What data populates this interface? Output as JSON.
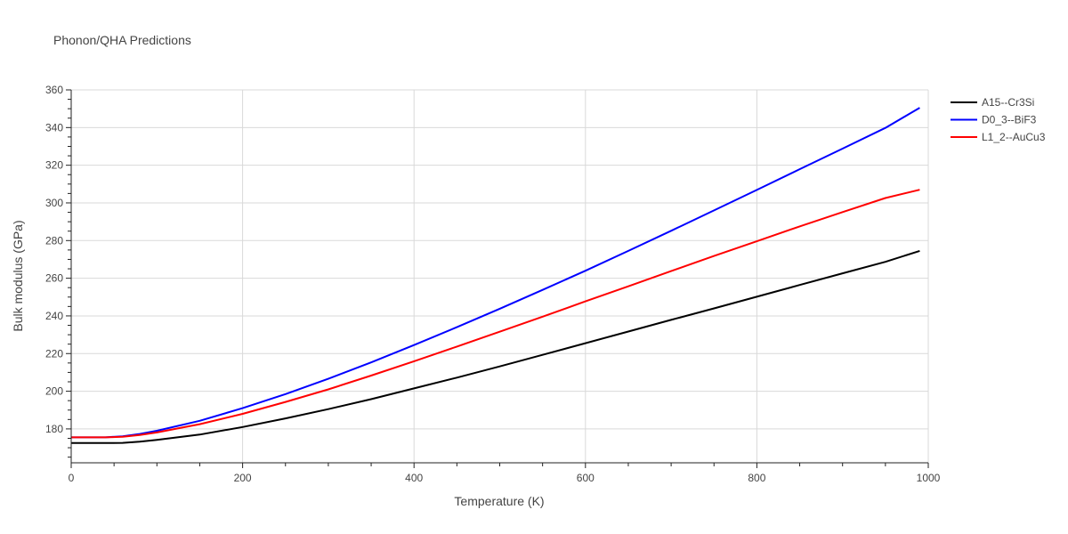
{
  "chart_data": {
    "type": "line",
    "title": "Phonon/QHA Predictions",
    "xlabel": "Temperature (K)",
    "ylabel": "Bulk modulus (GPa)",
    "xlim": [
      0,
      1000
    ],
    "ylim": [
      162,
      360
    ],
    "x_ticks": [
      0,
      200,
      400,
      600,
      800,
      1000
    ],
    "y_ticks": [
      180,
      200,
      220,
      240,
      260,
      280,
      300,
      320,
      340,
      360
    ],
    "grid": true,
    "legend_position": "top-right",
    "series": [
      {
        "name": "A15--Cr3Si",
        "color": "#000000",
        "x": [
          0,
          20,
          40,
          60,
          80,
          100,
          150,
          200,
          250,
          300,
          350,
          400,
          450,
          500,
          550,
          600,
          650,
          700,
          750,
          800,
          850,
          900,
          950,
          990
        ],
        "y": [
          172.5,
          172.5,
          172.5,
          172.6,
          173.2,
          174.2,
          177.0,
          181.0,
          185.6,
          190.5,
          195.8,
          201.5,
          207.2,
          213.2,
          219.3,
          225.5,
          231.7,
          237.9,
          244.0,
          250.2,
          256.4,
          262.6,
          268.7,
          274.5
        ]
      },
      {
        "name": "D0_3--BiF3",
        "color": "#0000ff",
        "x": [
          0,
          20,
          40,
          60,
          80,
          100,
          150,
          200,
          250,
          300,
          350,
          400,
          450,
          500,
          550,
          600,
          650,
          700,
          750,
          800,
          850,
          900,
          950,
          990
        ],
        "y": [
          175.5,
          175.5,
          175.5,
          176.1,
          177.3,
          179.0,
          184.3,
          191.0,
          198.5,
          206.6,
          215.3,
          224.5,
          234.0,
          243.8,
          253.8,
          264.0,
          274.5,
          285.2,
          296.0,
          306.9,
          317.9,
          328.8,
          339.8,
          350.5
        ]
      },
      {
        "name": "L1_2--AuCu3",
        "color": "#ff0000",
        "x": [
          0,
          20,
          40,
          60,
          80,
          100,
          150,
          200,
          250,
          300,
          350,
          400,
          450,
          500,
          550,
          600,
          650,
          700,
          750,
          800,
          850,
          900,
          950,
          990
        ],
        "y": [
          175.5,
          175.5,
          175.5,
          175.8,
          176.8,
          178.1,
          182.5,
          188.0,
          194.3,
          201.0,
          208.3,
          215.9,
          223.7,
          231.6,
          239.6,
          247.7,
          255.7,
          263.8,
          271.8,
          279.6,
          287.5,
          295.1,
          302.6,
          307.0
        ]
      }
    ]
  }
}
